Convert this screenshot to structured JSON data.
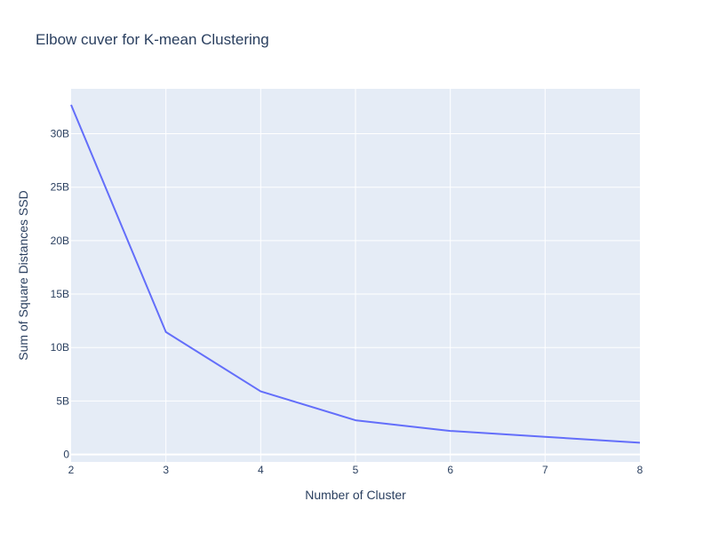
{
  "chart_data": {
    "type": "line",
    "title": "Elbow cuver for K-mean Clustering",
    "xlabel": "Number of Cluster",
    "ylabel": "Sum of Square Distances SSD",
    "x": [
      2,
      3,
      4,
      5,
      6,
      7,
      8
    ],
    "series": [
      {
        "values": [
          32700000000,
          11450000000,
          5900000000,
          3200000000,
          2200000000,
          1650000000,
          1100000000
        ],
        "color": "#636efa"
      }
    ],
    "xlim": [
      2,
      8
    ],
    "ylim": [
      -700000000,
      34200000000
    ],
    "x_ticks": [
      2,
      3,
      4,
      5,
      6,
      7,
      8
    ],
    "y_ticks": [
      0,
      5000000000,
      10000000000,
      15000000000,
      20000000000,
      25000000000,
      30000000000
    ],
    "y_tick_labels": [
      "0",
      "5B",
      "10B",
      "15B",
      "20B",
      "25B",
      "30B"
    ],
    "grid": true,
    "legend": "none",
    "colors": {
      "plot_bg": "#e5ecf6",
      "grid": "#ffffff",
      "text": "#2a3f5f"
    }
  }
}
